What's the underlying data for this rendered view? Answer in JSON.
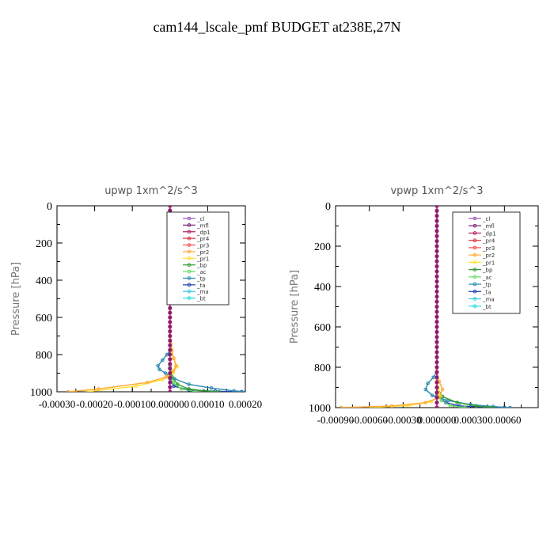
{
  "figure": {
    "title": "cam144_lscale_pmf  BUDGET at238E,27N"
  },
  "legend_colors": {
    "_cl": "#9b59b6",
    "_mfl": "#7b1e7a",
    "_dp1": "#b0205e",
    "_pr4": "#e0303f",
    "_pr3": "#f05050",
    "_pr2": "#ffaa33",
    "_pr1": "#ffe030",
    "_bp": "#2e9b2e",
    "_ac": "#66dd66",
    "_tp": "#2a8ab0",
    "_ta": "#1a3fb0",
    "_ma": "#33ccdd",
    "_bt": "#22dddd"
  },
  "chart_data": [
    {
      "type": "line",
      "title": "upwp   1xm^2/s^3",
      "ylabel": "Pressure [hPa]",
      "xlabel": "",
      "xlim": [
        -0.0003,
        0.0002
      ],
      "ylim": [
        1000,
        0
      ],
      "y_inverted": true,
      "xticks": [
        -0.0003,
        -0.0002,
        -0.0001,
        0.0,
        0.0001,
        0.0002
      ],
      "xtick_labels": [
        "-0.00030",
        "-0.00020",
        "-0.00010",
        "0.000000",
        "0.00010",
        "0.00020"
      ],
      "yticks": [
        0,
        200,
        400,
        600,
        800,
        1000
      ],
      "ytick_labels": [
        "0",
        "200",
        "400",
        "600",
        "800",
        "1000"
      ],
      "legend": [
        "_cl",
        "_mfl",
        "_dp1",
        "_pr4",
        "_pr3",
        "_pr2",
        "_pr1",
        "_bp",
        "_ac",
        "_tp",
        "_ta",
        "_ma",
        "_bt"
      ],
      "legend_position": "top-right",
      "series": [
        {
          "name": "_cl",
          "x": [
            0,
            0,
            0,
            0,
            0,
            0,
            0,
            0,
            0,
            0,
            0
          ],
          "y": [
            0,
            100,
            200,
            300,
            400,
            500,
            600,
            700,
            800,
            900,
            1000
          ]
        },
        {
          "name": "_mfl",
          "x": [
            0,
            0,
            0,
            0,
            0,
            0,
            0,
            0,
            0,
            0,
            0
          ],
          "y": [
            0,
            100,
            200,
            300,
            400,
            500,
            600,
            700,
            800,
            900,
            1000
          ]
        },
        {
          "name": "_dp1",
          "x": [
            0,
            0,
            0,
            0,
            0,
            0,
            0,
            0,
            0,
            0,
            0
          ],
          "y": [
            0,
            100,
            200,
            300,
            400,
            500,
            600,
            700,
            800,
            900,
            1000
          ]
        },
        {
          "name": "_pr2",
          "x": [
            0,
            0,
            2e-06,
            5e-06,
            1e-05,
            1.6e-05,
            8e-06,
            -1e-05,
            -6e-05,
            -0.00019,
            -0.00027
          ],
          "y": [
            0,
            600,
            740,
            780,
            820,
            860,
            890,
            920,
            950,
            985,
            1000
          ]
        },
        {
          "name": "_pr1",
          "x": [
            0,
            0,
            4e-06,
            1e-05,
            1.8e-05,
            8e-06,
            -2e-05,
            -9e-05,
            -0.00022
          ],
          "y": [
            0,
            700,
            770,
            820,
            865,
            900,
            935,
            970,
            1000
          ]
        },
        {
          "name": "_bp",
          "x": [
            0,
            0,
            5e-06,
            2e-05,
            5e-05,
            9e-05,
            0.00013
          ],
          "y": [
            0,
            860,
            920,
            960,
            985,
            995,
            1000
          ]
        },
        {
          "name": "_ac",
          "x": [
            0,
            0,
            8e-06,
            3e-05,
            7e-05
          ],
          "y": [
            0,
            900,
            950,
            985,
            1000
          ]
        },
        {
          "name": "_tp",
          "x": [
            0,
            0,
            -8e-06,
            -2e-05,
            -3.2e-05,
            -2.8e-05,
            -1.2e-05,
            1.2e-05,
            5e-05,
            0.00011,
            0.00017,
            0.0002
          ],
          "y": [
            0,
            780,
            800,
            830,
            860,
            880,
            900,
            930,
            960,
            980,
            995,
            1000
          ]
        },
        {
          "name": "_ta",
          "x": [
            0,
            0,
            1e-05,
            5e-05,
            0.00012,
            0.00019
          ],
          "y": [
            0,
            930,
            970,
            990,
            997,
            1000
          ]
        }
      ]
    },
    {
      "type": "line",
      "title": "vpwp   1xm^2/s^3",
      "ylabel": "Pressure [hPa]",
      "xlabel": "",
      "xlim": [
        -0.0009,
        0.0009
      ],
      "ylim": [
        1000,
        0
      ],
      "y_inverted": true,
      "xticks": [
        -0.0009,
        -0.0006,
        -0.0003,
        0.0,
        0.0003,
        0.0006
      ],
      "xtick_labels": [
        "-0.00090",
        "-0.00060",
        "-0.00030",
        "0.000000",
        "0.00030",
        "0.00060"
      ],
      "yticks": [
        0,
        200,
        400,
        600,
        800,
        1000
      ],
      "ytick_labels": [
        "0",
        "200",
        "400",
        "600",
        "800",
        "1000"
      ],
      "legend": [
        "_cl",
        "_mfl",
        "_dp1",
        "_pr4",
        "_pr3",
        "_pr2",
        "_pr1",
        "_bp",
        "_ac",
        "_tp",
        "_ta",
        "_ma",
        "_bt"
      ],
      "legend_position": "top-right",
      "series": [
        {
          "name": "_cl",
          "x": [
            0,
            0,
            0,
            0,
            0,
            0,
            0,
            0,
            0,
            0,
            0
          ],
          "y": [
            0,
            100,
            200,
            300,
            400,
            500,
            600,
            700,
            800,
            900,
            1000
          ]
        },
        {
          "name": "_mfl",
          "x": [
            0,
            0,
            0,
            0,
            0,
            0,
            0,
            0,
            0,
            0,
            0
          ],
          "y": [
            0,
            100,
            200,
            300,
            400,
            500,
            600,
            700,
            800,
            900,
            1000
          ]
        },
        {
          "name": "_dp1",
          "x": [
            0,
            0,
            0,
            0,
            0,
            0,
            0,
            0,
            0,
            0,
            0
          ],
          "y": [
            0,
            100,
            200,
            300,
            400,
            500,
            600,
            700,
            800,
            900,
            1000
          ]
        },
        {
          "name": "_pr2",
          "x": [
            0,
            0,
            2e-05,
            5e-05,
            2e-05,
            -0.0001,
            -0.0004,
            -0.00085
          ],
          "y": [
            0,
            820,
            870,
            910,
            950,
            975,
            992,
            1000
          ]
        },
        {
          "name": "_pr1",
          "x": [
            0,
            0,
            1e-05,
            3e-05,
            -5e-05,
            -0.00025,
            -0.0006
          ],
          "y": [
            0,
            860,
            900,
            940,
            970,
            990,
            1000
          ]
        },
        {
          "name": "_bp",
          "x": [
            0,
            0,
            5e-05,
            0.00018,
            0.00035,
            0.0005
          ],
          "y": [
            0,
            900,
            945,
            975,
            992,
            1000
          ]
        },
        {
          "name": "_ac",
          "x": [
            0,
            0,
            4e-05,
            0.00012,
            0.00025
          ],
          "y": [
            0,
            930,
            965,
            990,
            1000
          ]
        },
        {
          "name": "_tp",
          "x": [
            0,
            0,
            -3e-05,
            -8e-05,
            -0.0001,
            -4e-05,
            0.0001,
            0.0003,
            0.0005,
            0.00065
          ],
          "y": [
            0,
            820,
            850,
            880,
            910,
            940,
            965,
            985,
            995,
            1000
          ]
        },
        {
          "name": "_ta",
          "x": [
            0,
            0,
            8e-05,
            0.0002,
            0.00045,
            0.0006
          ],
          "y": [
            0,
            940,
            975,
            992,
            998,
            1000
          ]
        }
      ]
    }
  ]
}
